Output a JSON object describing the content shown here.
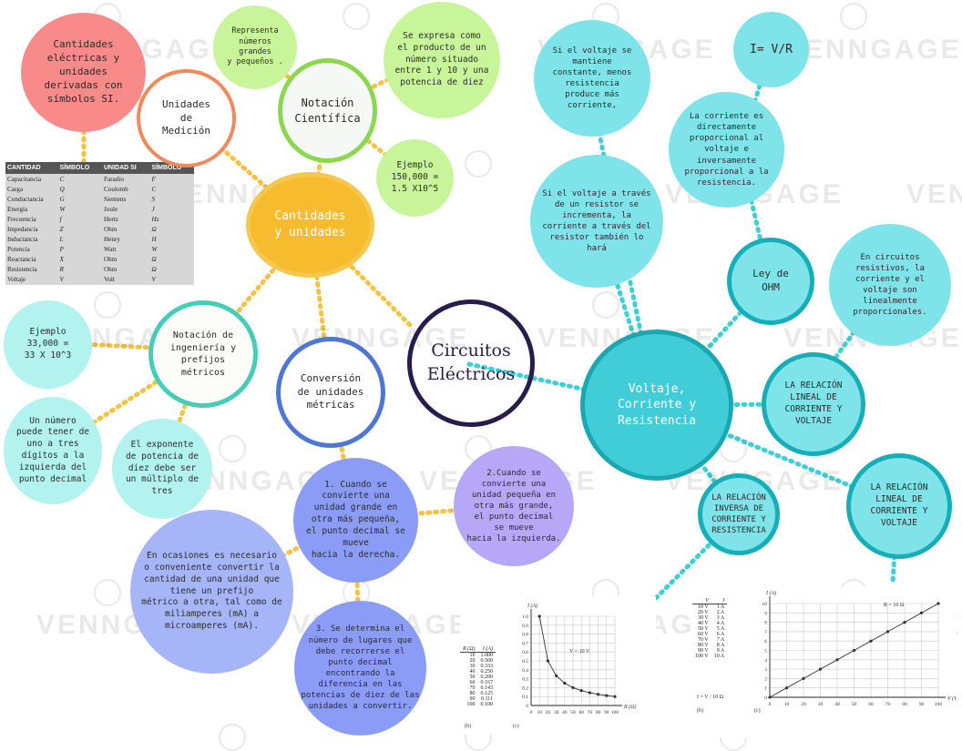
{
  "nodes": {
    "circuitos": "Circuitos\nEléctricos",
    "cantidades": "Cantidades\ny unidades",
    "unidades_medicion": "Unidades\nde\nMedición",
    "cantidades_si": "Cantidades\neléctricas y\nunidades\nderivadas con\nsímbolos SI.",
    "notacion_cientifica": "Notación\nCientífica",
    "representa": "Representa\nnúmeros\ngrandes\ny pequeños .",
    "se_expresa": "Se expresa como\nel producto de un\nnúmero situado\nentre 1 y 10 y una\npotencia de diez",
    "ejemplo_150": "Ejemplo\n150,000 =\n1.5 X10^5",
    "notacion_ingenieria": "Notación de\ningeniería y\nprefijos\nmétricos",
    "ejemplo_33": "Ejemplo\n33,000 =\n33 X 10^3",
    "numero_digitos": "Un número\npuede tener de\nuno a tres\ndígitos a la\nizquierda del\npunto decimal",
    "exponente": "El exponente\nde potencia de\ndiez debe ser\nun múltiplo de\ntres",
    "conversion": "Conversión\nde unidades\nmétricas",
    "paso1": "1. Cuando se\nconvierte una\nunidad grande en\notra más pequeña,\nel punto decimal se\nmueve\nhacia la derecha.",
    "paso2": "2.Cuando se\nconvierte una\nunidad pequeña en\notra más grande,\nel punto decimal\nse mueve\nhacia la izquierda.",
    "paso3": "3. Se determina el\nnúmero de lugares que\ndebe recorrerse el\npunto decimal\nencontrando la\ndiferencia en las\npotencias de diez de las\nunidades a convertir.",
    "ocasiones": "En ocasiones es necesario\no conveniente convertir la\ncantidad de una unidad que\ntiene un prefijo\nmétrico a otra, tal como de\nmiliamperes (mA) a\nmicroamperes (mA).",
    "voltaje": "Voltaje,\nCorriente y\nResistencia",
    "ley_ohm": "Ley de\nOHM",
    "formula": "I= V/R",
    "directamente": "La corriente es\ndirectamente\nproporcional al\nvoltaje e\ninversamente\nproporcional a la\nresistencia.",
    "si_se_mantiene": "Si el voltaje se\nmantiene\nconstante, menos\nresistencia\nproduce más\ncorriente,",
    "si_incrementa": "Si el voltaje a través\nde un resistor se\nincrementa, la\ncorriente a través del\nresistor también lo\nhará",
    "circuitos_resistivos": "En circuitos\nresistivos, la\ncorriente y el\nvoltaje son\nlinealmente\nproporcionales.",
    "relacion_lineal_1": "LA RELACIÓN\nLINEAL DE\nCORRIENTE Y\nVOLTAJE",
    "relacion_lineal_2": "LA RELACIÓN\nLINEAL DE\nCORRIENTE Y\nVOLTAJE",
    "relacion_inversa": "LA RELACIÓN\nINVERSA DE\nCORRIENTE Y\nRESISTENCIA"
  },
  "units_table": {
    "headers": [
      "CANTIDAD",
      "SÍMBOLO",
      "UNIDAD SI",
      "SÍMBOLO"
    ],
    "rows": [
      [
        "Capacitancia",
        "C",
        "Faradio",
        "F"
      ],
      [
        "Carga",
        "Q",
        "Coulomb",
        "C"
      ],
      [
        "Conductancia",
        "G",
        "Siemens",
        "S"
      ],
      [
        "Energía",
        "W",
        "Joule",
        "J"
      ],
      [
        "Frecuencia",
        "f",
        "Hertz",
        "Hz"
      ],
      [
        "Impedancia",
        "Z",
        "Ohm",
        "Ω"
      ],
      [
        "Inductancia",
        "L",
        "Henry",
        "H"
      ],
      [
        "Potencia",
        "P",
        "Watt",
        "W"
      ],
      [
        "Reactancia",
        "X",
        "Ohm",
        "Ω"
      ],
      [
        "Resistencia",
        "R",
        "Ohm",
        "Ω"
      ],
      [
        "Voltaje",
        "V",
        "Volt",
        "V"
      ]
    ]
  },
  "inverse_fig": {
    "table_headers": [
      "R (Ω)",
      "I (A)"
    ],
    "rows": [
      [
        "10",
        "1.000"
      ],
      [
        "20",
        "0.500"
      ],
      [
        "30",
        "0.333"
      ],
      [
        "40",
        "0.250"
      ],
      [
        "50",
        "0.200"
      ],
      [
        "60",
        "0.167"
      ],
      [
        "70",
        "0.143"
      ],
      [
        "80",
        "0.125"
      ],
      [
        "90",
        "0.111"
      ],
      [
        "100",
        "0.100"
      ]
    ],
    "table_caption": "(b)",
    "chart_caption": "(c)",
    "y_label": "I (A)",
    "x_label": "R (Ω)",
    "annotation": "V = 10 V"
  },
  "linear_fig": {
    "table_headers": [
      "V",
      "I"
    ],
    "rows": [
      [
        "10 V",
        "1 A"
      ],
      [
        "20 V",
        "2 A"
      ],
      [
        "30 V",
        "3 A"
      ],
      [
        "40 V",
        "4 A"
      ],
      [
        "50 V",
        "5 A"
      ],
      [
        "60 V",
        "6 A"
      ],
      [
        "70 V",
        "7 A"
      ],
      [
        "80 V",
        "8 A"
      ],
      [
        "90 V",
        "9 A"
      ],
      [
        "100 V",
        "10 A"
      ]
    ],
    "formula": "I = V / 10 Ω",
    "table_caption": "(b)",
    "chart_caption": "(c)",
    "y_label": "I (A)",
    "x_label": "V (V)",
    "annotation": "R = 10 Ω"
  },
  "chart_data": [
    {
      "type": "line",
      "xlabel": "R (Ω)",
      "ylabel": "I (A)",
      "annotation": "V = 10 V",
      "xlim": [
        0,
        100
      ],
      "ylim": [
        0,
        1.0
      ],
      "x_ticks": [
        "0",
        "10",
        "20",
        "30",
        "40",
        "50",
        "60",
        "70",
        "80",
        "90",
        "100"
      ],
      "y_ticks": [
        "0",
        "0.1",
        "0.2",
        "0.3",
        "0.4",
        "0.5",
        "0.6",
        "0.7",
        "0.8",
        "0.9",
        "1.0"
      ],
      "x": [
        10,
        20,
        30,
        40,
        50,
        60,
        70,
        80,
        90,
        100
      ],
      "y": [
        1.0,
        0.5,
        0.333,
        0.25,
        0.2,
        0.167,
        0.143,
        0.125,
        0.111,
        0.1
      ],
      "grid": true
    },
    {
      "type": "line",
      "xlabel": "V (V)",
      "ylabel": "I (A)",
      "annotation": "R = 10 Ω",
      "xlim": [
        0,
        100
      ],
      "ylim": [
        0,
        10
      ],
      "x_ticks": [
        "0",
        "10",
        "20",
        "30",
        "40",
        "50",
        "60",
        "70",
        "80",
        "90",
        "100"
      ],
      "y_ticks": [
        "0",
        "1",
        "2",
        "3",
        "4",
        "5",
        "6",
        "7",
        "8",
        "9",
        "10"
      ],
      "x": [
        0,
        10,
        20,
        30,
        40,
        50,
        60,
        70,
        80,
        90,
        100
      ],
      "y": [
        0,
        1,
        2,
        3,
        4,
        5,
        6,
        7,
        8,
        9,
        10
      ],
      "grid": true
    }
  ],
  "watermark": "VENNGAGE"
}
